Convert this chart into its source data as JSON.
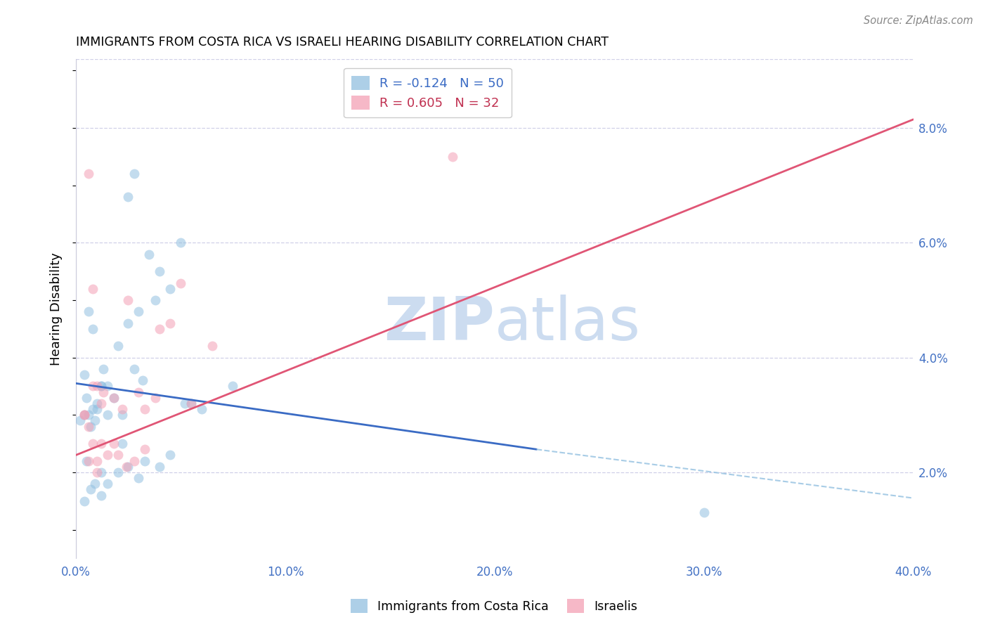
{
  "title": "IMMIGRANTS FROM COSTA RICA VS ISRAELI HEARING DISABILITY CORRELATION CHART",
  "source": "Source: ZipAtlas.com",
  "ylabel": "Hearing Disability",
  "ytick_values": [
    2.0,
    4.0,
    6.0,
    8.0
  ],
  "xmin": 0.0,
  "xmax": 40.0,
  "ymin": 0.5,
  "ymax": 9.2,
  "legend_r1": "R = -0.124",
  "legend_n1": "N = 50",
  "legend_r2": "R = 0.605",
  "legend_n2": "N = 32",
  "blue_color": "#92c0e0",
  "pink_color": "#f4a0b5",
  "blue_line_color": "#3a6bc4",
  "pink_line_color": "#e05575",
  "grid_color": "#d0d0e8",
  "blue_scatter_x": [
    1.2,
    2.8,
    2.5,
    0.6,
    0.8,
    0.4,
    0.5,
    1.0,
    1.5,
    0.9,
    0.7,
    1.3,
    3.5,
    4.0,
    5.0,
    4.5,
    3.8,
    3.0,
    2.5,
    2.0,
    1.2,
    1.0,
    0.6,
    0.4,
    0.2,
    0.8,
    1.5,
    1.8,
    2.2,
    2.8,
    3.2,
    5.5,
    6.0,
    7.5,
    1.2,
    0.9,
    0.7,
    0.5,
    2.2,
    3.3,
    4.0,
    4.5,
    5.2,
    2.0,
    2.5,
    3.0,
    1.5,
    1.2,
    30.0,
    0.4
  ],
  "blue_scatter_y": [
    3.5,
    7.2,
    6.8,
    4.8,
    4.5,
    3.7,
    3.3,
    3.1,
    3.0,
    2.9,
    2.8,
    3.8,
    5.8,
    5.5,
    6.0,
    5.2,
    5.0,
    4.8,
    4.6,
    4.2,
    3.5,
    3.2,
    3.0,
    3.0,
    2.9,
    3.1,
    3.5,
    3.3,
    3.0,
    3.8,
    3.6,
    3.2,
    3.1,
    3.5,
    2.0,
    1.8,
    1.7,
    2.2,
    2.5,
    2.2,
    2.1,
    2.3,
    3.2,
    2.0,
    2.1,
    1.9,
    1.8,
    1.6,
    1.3,
    1.5
  ],
  "pink_scatter_x": [
    0.4,
    1.0,
    0.6,
    0.8,
    2.5,
    4.0,
    4.5,
    5.0,
    1.2,
    1.8,
    2.2,
    3.0,
    0.6,
    1.0,
    1.5,
    1.2,
    1.8,
    3.3,
    3.8,
    5.5,
    0.8,
    1.0,
    2.0,
    2.4,
    2.8,
    3.3,
    0.4,
    0.8,
    0.6,
    6.5,
    1.3,
    18.0
  ],
  "pink_scatter_y": [
    3.0,
    3.5,
    2.8,
    5.2,
    5.0,
    4.5,
    4.6,
    5.3,
    3.2,
    3.3,
    3.1,
    3.4,
    2.2,
    2.0,
    2.3,
    2.5,
    2.5,
    3.1,
    3.3,
    3.2,
    2.5,
    2.2,
    2.3,
    2.1,
    2.2,
    2.4,
    3.0,
    3.5,
    7.2,
    4.2,
    3.4,
    7.5
  ],
  "blue_reg_x0": 0.0,
  "blue_reg_y0": 3.55,
  "blue_reg_x1": 22.0,
  "blue_reg_y1": 2.4,
  "blue_dash_x0": 22.0,
  "blue_dash_y0": 2.4,
  "blue_dash_x1": 40.0,
  "blue_dash_y1": 1.55,
  "pink_reg_x0": 0.0,
  "pink_reg_y0": 2.3,
  "pink_reg_x1": 40.0,
  "pink_reg_y1": 8.15,
  "watermark_zip": "ZIP",
  "watermark_atlas": "atlas",
  "watermark_color": "#ccdcf0",
  "marker_size": 100,
  "marker_alpha": 0.55
}
